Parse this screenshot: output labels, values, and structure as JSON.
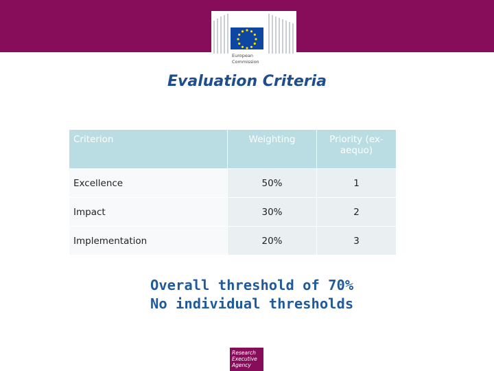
{
  "header": {
    "logo_text": [
      "European",
      "Commission"
    ]
  },
  "title": "Evaluation Criteria",
  "table": {
    "header": [
      "Criterion",
      "Weighting",
      "Priority (ex-aequo)"
    ],
    "rows": [
      [
        "Excellence",
        "50%",
        "1"
      ],
      [
        "Impact",
        "30%",
        "2"
      ],
      [
        "Implementation",
        "20%",
        "3"
      ]
    ]
  },
  "notes": [
    "Overall threshold of 70%",
    "No individual thresholds"
  ],
  "footer": {
    "logo_text": [
      "Research",
      "Executive",
      "Agency"
    ]
  }
}
